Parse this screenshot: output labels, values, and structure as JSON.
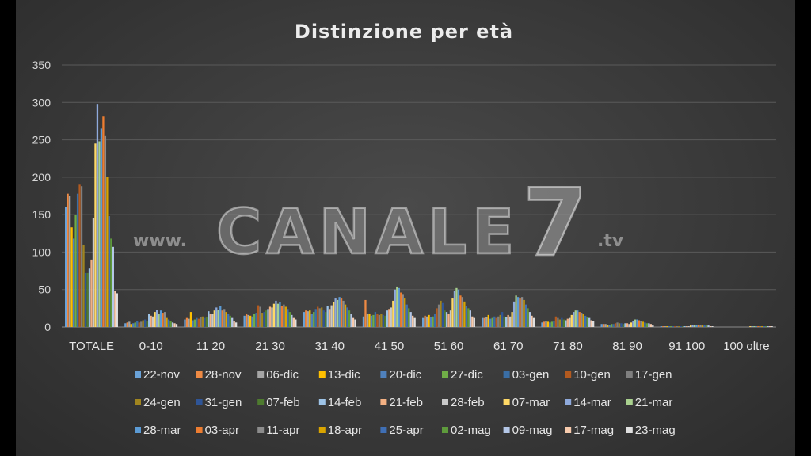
{
  "watermark": {
    "prefix": "www.",
    "brand": "CANALE",
    "number": "7",
    "suffix": ".tv"
  },
  "chart_data": {
    "type": "bar",
    "title": "Distinzione per età",
    "xlabel": "",
    "ylabel": "",
    "ylim": [
      0,
      350
    ],
    "yticks": [
      0,
      50,
      100,
      150,
      200,
      250,
      300,
      350
    ],
    "grid": true,
    "legend_position": "bottom",
    "categories": [
      "TOTALE",
      "0-10",
      "11 20",
      "21 30",
      "31 40",
      "41 50",
      "51 60",
      "61 70",
      "71 80",
      "81 90",
      "91 100",
      "100 oltre"
    ],
    "colors": {
      "background": "#3d3d3d",
      "gridline": "#5a5a5a",
      "text": "#e6e6e6"
    },
    "series": [
      {
        "name": "22-nov",
        "color": "#6aa2d8",
        "values": [
          160,
          5,
          10,
          15,
          20,
          14,
          12,
          12,
          6,
          4,
          1,
          0
        ]
      },
      {
        "name": "28-nov",
        "color": "#ee8a44",
        "values": [
          178,
          6,
          12,
          17,
          22,
          36,
          15,
          12,
          7,
          4,
          1,
          0
        ]
      },
      {
        "name": "06-dic",
        "color": "#a5a5a5",
        "values": [
          175,
          7,
          11,
          16,
          21,
          18,
          14,
          13,
          8,
          4,
          1,
          0
        ]
      },
      {
        "name": "13-dic",
        "color": "#ffc000",
        "values": [
          133,
          4,
          20,
          15,
          22,
          18,
          16,
          16,
          7,
          3,
          1,
          0
        ]
      },
      {
        "name": "20-dic",
        "color": "#4f81bd",
        "values": [
          118,
          5,
          9,
          14,
          18,
          15,
          13,
          11,
          6,
          3,
          1,
          0
        ]
      },
      {
        "name": "27-dic",
        "color": "#70ad47",
        "values": [
          150,
          6,
          10,
          18,
          20,
          16,
          14,
          12,
          7,
          4,
          1,
          0
        ]
      },
      {
        "name": "03-gen",
        "color": "#3a6ea5",
        "values": [
          178,
          8,
          12,
          19,
          24,
          20,
          18,
          14,
          8,
          4,
          1,
          0
        ]
      },
      {
        "name": "10-gen",
        "color": "#b35a1f",
        "values": [
          190,
          6,
          11,
          29,
          27,
          17,
          25,
          12,
          14,
          5,
          1,
          0
        ]
      },
      {
        "name": "17-gen",
        "color": "#7f7f7f",
        "values": [
          188,
          7,
          13,
          27,
          25,
          16,
          30,
          14,
          12,
          6,
          1,
          0
        ]
      },
      {
        "name": "24-gen",
        "color": "#a0851f",
        "values": [
          110,
          9,
          14,
          19,
          26,
          18,
          35,
          16,
          10,
          5,
          1,
          0
        ]
      },
      {
        "name": "31-gen",
        "color": "#2f5597",
        "values": [
          72,
          10,
          12,
          20,
          22,
          16,
          32,
          20,
          12,
          5,
          1,
          0
        ]
      },
      {
        "name": "07-feb",
        "color": "#4e7b2f",
        "values": [
          72,
          8,
          13,
          22,
          20,
          15,
          22,
          14,
          10,
          4,
          1,
          0
        ]
      },
      {
        "name": "14-feb",
        "color": "#9dc3e6",
        "values": [
          78,
          17,
          21,
          24,
          28,
          22,
          20,
          13,
          9,
          5,
          1,
          0
        ]
      },
      {
        "name": "21-feb",
        "color": "#f4b183",
        "values": [
          90,
          15,
          18,
          27,
          24,
          24,
          18,
          16,
          11,
          5,
          1,
          0
        ]
      },
      {
        "name": "28-feb",
        "color": "#c9c9c9",
        "values": [
          145,
          14,
          17,
          26,
          29,
          26,
          22,
          14,
          12,
          4,
          1,
          0
        ]
      },
      {
        "name": "07-mar",
        "color": "#ffd966",
        "values": [
          245,
          20,
          22,
          31,
          33,
          35,
          38,
          20,
          16,
          6,
          2,
          1
        ]
      },
      {
        "name": "14-mar",
        "color": "#8faadc",
        "values": [
          298,
          23,
          26,
          35,
          38,
          50,
          48,
          34,
          20,
          8,
          3,
          1
        ]
      },
      {
        "name": "21-mar",
        "color": "#a9d18e",
        "values": [
          248,
          18,
          23,
          31,
          36,
          54,
          52,
          42,
          22,
          10,
          3,
          1
        ]
      },
      {
        "name": "28-mar",
        "color": "#5b9bd5",
        "values": [
          265,
          22,
          28,
          33,
          40,
          52,
          50,
          40,
          22,
          10,
          3,
          1
        ]
      },
      {
        "name": "03-apr",
        "color": "#ed7d31",
        "values": [
          281,
          19,
          22,
          28,
          38,
          46,
          42,
          38,
          20,
          9,
          3,
          1
        ]
      },
      {
        "name": "11-apr",
        "color": "#8c8c8c",
        "values": [
          255,
          20,
          24,
          30,
          35,
          44,
          40,
          40,
          19,
          8,
          3,
          1
        ]
      },
      {
        "name": "18-apr",
        "color": "#d9a400",
        "values": [
          200,
          12,
          20,
          27,
          30,
          38,
          34,
          36,
          17,
          7,
          2,
          1
        ]
      },
      {
        "name": "25-apr",
        "color": "#3f6fb5",
        "values": [
          148,
          10,
          18,
          24,
          26,
          30,
          28,
          30,
          15,
          6,
          2,
          1
        ]
      },
      {
        "name": "02-mag",
        "color": "#5e9b3c",
        "values": [
          118,
          8,
          15,
          20,
          22,
          25,
          25,
          25,
          13,
          5,
          2,
          1
        ]
      },
      {
        "name": "09-mag",
        "color": "#b4c7e7",
        "values": [
          107,
          6,
          12,
          16,
          18,
          20,
          22,
          20,
          12,
          5,
          2,
          1
        ]
      },
      {
        "name": "17-mag",
        "color": "#f8cbad",
        "values": [
          48,
          5,
          8,
          12,
          12,
          15,
          14,
          15,
          9,
          4,
          1,
          1
        ]
      },
      {
        "name": "23-mag",
        "color": "#e0e0e0",
        "values": [
          45,
          4,
          6,
          10,
          10,
          12,
          12,
          12,
          8,
          3,
          1,
          1
        ]
      }
    ]
  }
}
